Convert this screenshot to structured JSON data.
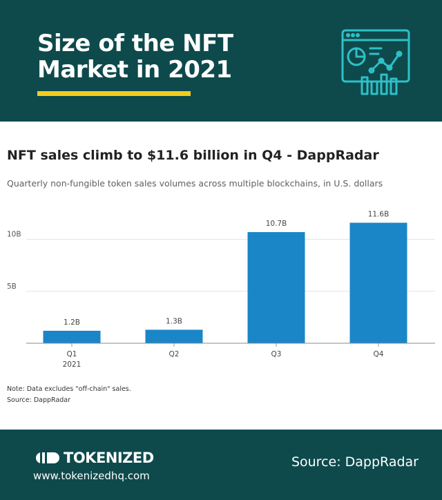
{
  "header": {
    "title_line1": "Size of the NFT",
    "title_line2": "Market in 2021",
    "accent_color": "#f2cd1e",
    "background_color": "#0e4a4c",
    "icon": "analytics-dashboard-icon"
  },
  "chart_data": {
    "type": "bar",
    "title": "NFT sales climb to $11.6 billion in Q4 - DappRadar",
    "subtitle": "Quarterly non-fungible token sales volumes across multiple blockchains, in U.S. dollars",
    "categories": [
      "Q1",
      "Q2",
      "Q3",
      "Q4"
    ],
    "category_sublabels": [
      "2021",
      "",
      "",
      ""
    ],
    "values": [
      1.2,
      1.3,
      10.7,
      11.6
    ],
    "value_labels": [
      "1.2B",
      "1.3B",
      "10.7B",
      "11.6B"
    ],
    "yticks": [
      5,
      10
    ],
    "ytick_labels": [
      "5B",
      "10B"
    ],
    "ylim": [
      0,
      12.3
    ],
    "grid": true,
    "bar_color": "#1a86c8",
    "xlabel": "",
    "ylabel": ""
  },
  "notes": {
    "note": "Note: Data excludes \"off-chain\" sales.",
    "source": "Source: DappRadar"
  },
  "footer": {
    "brand_name": "TOKENIZED",
    "url": "www.tokenizedhq.com",
    "source": "Source: DappRadar"
  }
}
